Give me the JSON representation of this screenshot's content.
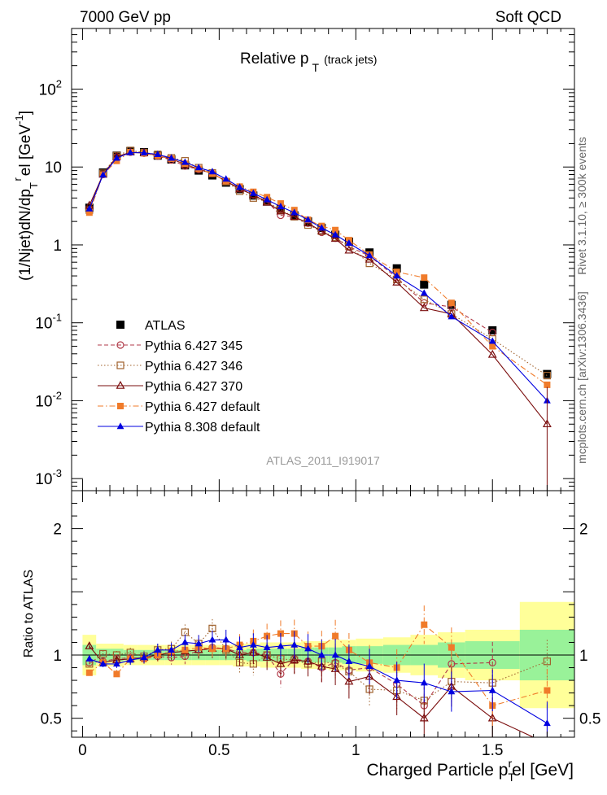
{
  "header": {
    "left": "7000 GeV pp",
    "right": "Soft QCD"
  },
  "side_text": {
    "rivet": "Rivet 3.1.10, ≥ 300k events",
    "mcplots": "mcplots.cern.ch [arXiv:1306.3436]"
  },
  "plot": {
    "title_main": "Relative p",
    "title_sub": "T",
    "title_suffix": "(track jets)",
    "watermark": "ATLAS_2011_I919017",
    "ylabel_parts": [
      "(1/Njet)dN/dp",
      "T",
      "r",
      "el [GeV",
      "-1",
      "]"
    ],
    "ratio_ylabel": "Ratio to ATLAS",
    "xlabel_parts": [
      "Charged Particle p",
      "T",
      "r",
      "el [GeV]"
    ]
  },
  "legend": [
    {
      "label": "ATLAS",
      "color": "#000000",
      "marker": "filled-square",
      "line": "none"
    },
    {
      "label": "Pythia 6.427 345",
      "color": "#b03a48",
      "marker": "open-circle",
      "line": "dashed"
    },
    {
      "label": "Pythia 6.427 346",
      "color": "#a0622d",
      "marker": "open-square",
      "line": "dotted"
    },
    {
      "label": "Pythia 6.427 370",
      "color": "#7a0c0c",
      "marker": "open-triangle",
      "line": "solid"
    },
    {
      "label": "Pythia 6.427 default",
      "color": "#f07b2a",
      "marker": "filled-square",
      "line": "dashdot"
    },
    {
      "label": "Pythia 8.308 default",
      "color": "#0000e0",
      "marker": "filled-triangle",
      "line": "solid"
    }
  ],
  "chart_data": [
    {
      "type": "scatter",
      "panel": "main",
      "xlim": [
        -0.04,
        1.8
      ],
      "ylim": [
        0.0007,
        600
      ],
      "yscale": "log",
      "xticks": [
        "0",
        "0.5",
        "1",
        "1.5"
      ],
      "yticks": [
        "10^-3",
        "10^-2",
        "10^-1",
        "1",
        "10",
        "10^2"
      ],
      "x": [
        0.025,
        0.075,
        0.125,
        0.175,
        0.225,
        0.275,
        0.325,
        0.375,
        0.425,
        0.475,
        0.525,
        0.575,
        0.625,
        0.675,
        0.725,
        0.775,
        0.825,
        0.875,
        0.925,
        0.975,
        1.05,
        1.15,
        1.25,
        1.35,
        1.5,
        1.7
      ],
      "series": [
        {
          "name": "ATLAS",
          "values": [
            3.0,
            8.5,
            14.0,
            16.0,
            15.5,
            14.0,
            12.5,
            10.5,
            9.0,
            7.8,
            6.3,
            5.2,
            4.3,
            3.6,
            2.9,
            2.4,
            2.0,
            1.65,
            1.35,
            1.1,
            0.8,
            0.5,
            0.31,
            0.17,
            0.08,
            0.022
          ]
        },
        {
          "name": "Pythia 6.427 345",
          "values": [
            2.8,
            8.0,
            13.5,
            15.5,
            15.0,
            13.8,
            12.3,
            10.3,
            9.3,
            8.3,
            6.6,
            5.3,
            4.4,
            3.6,
            2.4,
            2.3,
            1.9,
            1.45,
            1.22,
            0.95,
            0.72,
            0.38,
            0.18,
            0.16,
            0.075,
            null
          ]
        },
        {
          "name": "Pythia 6.427 346",
          "values": [
            2.8,
            8.3,
            14.0,
            16.3,
            15.3,
            14.5,
            13.1,
            12.0,
            9.8,
            8.4,
            6.5,
            4.9,
            4.0,
            3.6,
            2.8,
            2.3,
            1.8,
            1.5,
            1.25,
            0.96,
            0.58,
            0.36,
            0.2,
            0.13,
            0.062,
            0.021
          ]
        },
        {
          "name": "Pythia 6.427 370",
          "values": [
            3.2,
            8.0,
            13.5,
            15.5,
            15.2,
            14.0,
            12.7,
            10.8,
            9.4,
            8.2,
            6.6,
            5.2,
            4.4,
            3.5,
            2.7,
            2.3,
            1.9,
            1.5,
            1.2,
            0.85,
            0.65,
            0.33,
            0.155,
            0.13,
            0.039,
            0.005
          ]
        },
        {
          "name": "Pythia 6.427 default",
          "values": [
            2.6,
            8.0,
            12.0,
            15.5,
            15.0,
            14.0,
            12.8,
            11.0,
            9.5,
            8.2,
            6.6,
            5.6,
            4.8,
            4.1,
            3.4,
            2.8,
            2.1,
            1.75,
            1.55,
            1.15,
            0.75,
            0.45,
            0.38,
            0.18,
            0.05,
            0.016
          ]
        },
        {
          "name": "Pythia 8.308 default",
          "values": [
            2.9,
            7.9,
            13.0,
            15.3,
            15.2,
            14.5,
            13.0,
            11.5,
            9.8,
            8.7,
            7.0,
            5.5,
            4.6,
            3.8,
            3.1,
            2.6,
            2.1,
            1.65,
            1.35,
            1.05,
            0.73,
            0.4,
            0.24,
            0.12,
            0.058,
            0.01
          ]
        }
      ]
    },
    {
      "type": "scatter",
      "panel": "ratio",
      "xlim": [
        -0.04,
        1.8
      ],
      "ylim": [
        0.35,
        2.3
      ],
      "yticks": [
        "0.5",
        "1",
        "2"
      ],
      "ylabel": "Ratio to ATLAS",
      "xlabel": "Charged Particle p_T^rel [GeV]",
      "band_edges": [
        0.0,
        0.05,
        0.1,
        0.15,
        0.2,
        0.25,
        0.3,
        0.35,
        0.4,
        0.45,
        0.5,
        0.55,
        0.6,
        0.65,
        0.7,
        0.75,
        0.8,
        0.85,
        0.9,
        0.95,
        1.0,
        1.1,
        1.2,
        1.3,
        1.4,
        1.6,
        1.8
      ],
      "band_yellow_half": [
        0.16,
        0.09,
        0.09,
        0.08,
        0.08,
        0.08,
        0.08,
        0.08,
        0.08,
        0.08,
        0.08,
        0.09,
        0.09,
        0.1,
        0.1,
        0.1,
        0.11,
        0.11,
        0.12,
        0.12,
        0.13,
        0.14,
        0.16,
        0.18,
        0.2,
        0.42
      ],
      "band_green_half": [
        0.08,
        0.05,
        0.05,
        0.04,
        0.04,
        0.04,
        0.04,
        0.04,
        0.04,
        0.04,
        0.04,
        0.04,
        0.05,
        0.05,
        0.05,
        0.05,
        0.06,
        0.06,
        0.06,
        0.07,
        0.07,
        0.08,
        0.08,
        0.1,
        0.11,
        0.2
      ],
      "x": [
        0.025,
        0.075,
        0.125,
        0.175,
        0.225,
        0.275,
        0.325,
        0.375,
        0.425,
        0.475,
        0.525,
        0.575,
        0.625,
        0.675,
        0.725,
        0.775,
        0.825,
        0.875,
        0.925,
        0.975,
        1.05,
        1.15,
        1.25,
        1.35,
        1.5,
        1.7
      ],
      "series": [
        {
          "name": "Pythia 6.427 345",
          "values": [
            0.94,
            0.95,
            0.97,
            0.98,
            0.97,
            0.99,
            0.98,
            0.99,
            1.04,
            1.06,
            1.05,
            1.02,
            1.02,
            1.0,
            0.85,
            0.97,
            0.95,
            0.9,
            0.94,
            0.88,
            0.9,
            0.77,
            0.6,
            0.93,
            0.94,
            null
          ]
        },
        {
          "name": "Pythia 6.427 346",
          "values": [
            0.93,
            1.01,
            1.0,
            1.02,
            0.99,
            1.04,
            1.05,
            1.18,
            1.09,
            1.21,
            1.04,
            0.94,
            0.93,
            1.0,
            0.97,
            0.96,
            0.93,
            0.95,
            0.93,
            0.87,
            0.73,
            0.72,
            0.64,
            0.79,
            0.78,
            0.95
          ]
        },
        {
          "name": "Pythia 6.427 370",
          "values": [
            1.07,
            0.94,
            0.96,
            0.97,
            0.98,
            1.0,
            1.02,
            1.03,
            1.04,
            1.05,
            1.05,
            1.0,
            1.02,
            0.98,
            0.93,
            0.96,
            0.95,
            0.91,
            0.89,
            0.79,
            0.83,
            0.67,
            0.5,
            0.75,
            0.5,
            0.3
          ]
        },
        {
          "name": "Pythia 6.427 default",
          "values": [
            0.86,
            0.94,
            0.85,
            0.97,
            0.97,
            1.0,
            1.03,
            1.04,
            1.06,
            1.05,
            1.05,
            1.08,
            1.11,
            1.15,
            1.17,
            1.17,
            1.07,
            1.07,
            1.15,
            1.04,
            0.94,
            0.9,
            1.24,
            1.06,
            0.6,
            0.72
          ]
        },
        {
          "name": "Pythia 8.308 default",
          "values": [
            0.97,
            0.93,
            0.93,
            0.96,
            0.98,
            1.04,
            1.04,
            1.1,
            1.09,
            1.12,
            1.12,
            1.06,
            1.08,
            1.06,
            1.07,
            1.08,
            1.05,
            1.0,
            1.0,
            0.95,
            0.91,
            0.8,
            0.78,
            0.71,
            0.72,
            0.46
          ]
        }
      ]
    }
  ]
}
